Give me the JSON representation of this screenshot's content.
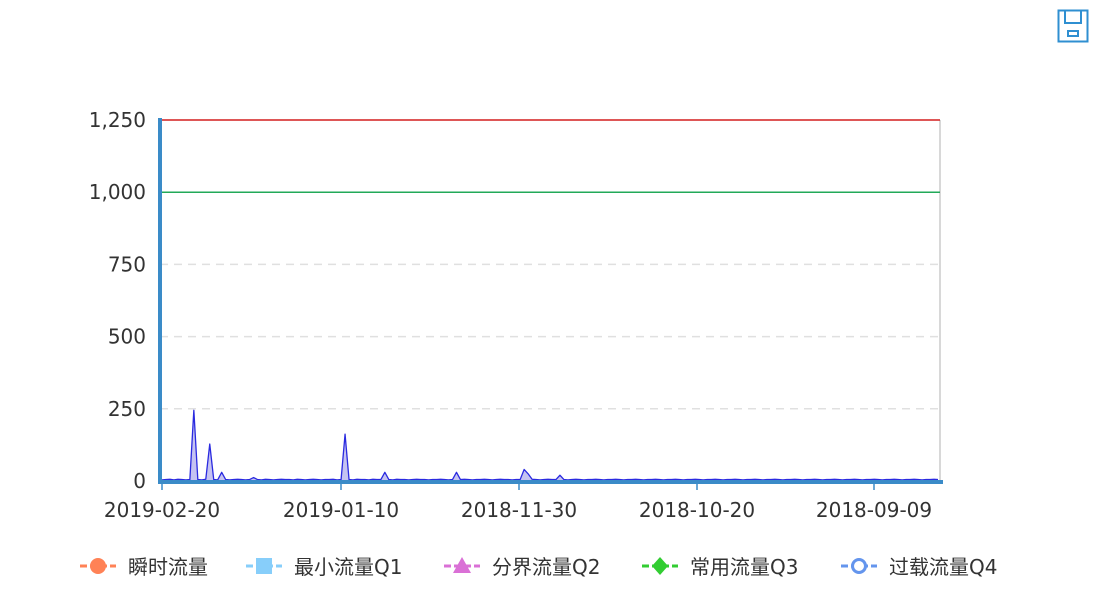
{
  "toolbar": {
    "save_icon": "save-as-image-icon",
    "color": "#2f8fd1"
  },
  "chart_data": {
    "type": "area",
    "x_ticks": [
      "2019-02-20",
      "2019-01-10",
      "2018-11-30",
      "2018-10-20",
      "2018-09-09"
    ],
    "y_ticks": [
      "0",
      "250",
      "500",
      "750",
      "1,000",
      "1,250"
    ],
    "ylim": [
      0,
      1250
    ],
    "grid": true,
    "reference_lines": [
      {
        "value": 1250,
        "color": "#d41e1e"
      },
      {
        "value": 1000,
        "color": "#22a958"
      }
    ],
    "series": [
      {
        "color": "#2a2ae0",
        "fill": "#b7b4ee",
        "values": [
          4,
          5,
          6,
          4,
          6,
          5,
          4,
          5,
          245,
          5,
          4,
          6,
          128,
          5,
          4,
          30,
          5,
          4,
          5,
          6,
          5,
          4,
          5,
          12,
          5,
          4,
          6,
          5,
          4,
          5,
          6,
          5,
          5,
          4,
          6,
          5,
          4,
          5,
          6,
          5,
          4,
          5,
          5,
          6,
          4,
          5,
          162,
          5,
          4,
          6,
          5,
          5,
          4,
          6,
          5,
          5,
          30,
          5,
          4,
          6,
          5,
          5,
          4,
          5,
          6,
          5,
          5,
          4,
          5,
          5,
          6,
          5,
          4,
          5,
          30,
          5,
          6,
          5,
          4,
          5,
          5,
          6,
          5,
          4,
          5,
          6,
          5,
          5,
          4,
          5,
          5,
          40,
          25,
          6,
          5,
          4,
          5,
          6,
          5,
          5,
          20,
          5,
          4,
          5,
          6,
          5,
          4,
          5,
          5,
          6,
          5,
          4,
          5,
          5,
          6,
          5,
          4,
          5,
          5,
          6,
          5,
          4,
          5,
          5,
          6,
          5,
          4,
          5,
          5,
          6,
          5,
          4,
          5,
          5,
          6,
          5,
          4,
          5,
          5,
          6,
          5,
          4,
          5,
          5,
          6,
          5,
          4,
          5,
          5,
          6,
          5,
          4,
          5,
          5,
          6,
          5,
          4,
          5,
          5,
          6,
          5,
          4,
          5,
          5,
          6,
          5,
          4,
          5,
          5,
          6,
          5,
          4,
          5,
          5,
          6,
          5,
          4,
          5,
          5,
          6,
          5,
          4,
          5,
          5,
          6,
          5,
          4,
          5,
          5,
          6,
          5,
          4,
          5,
          5,
          6,
          5
        ]
      }
    ],
    "legend": {
      "position": "bottom",
      "items": [
        {
          "label": "瞬时流量",
          "color": "#ff8256",
          "marker": "circle"
        },
        {
          "label": "最小流量Q1",
          "color": "#87cefa",
          "marker": "square"
        },
        {
          "label": "分界流量Q2",
          "color": "#da70d6",
          "marker": "triangle"
        },
        {
          "label": "常用流量Q3",
          "color": "#32cd32",
          "marker": "diamond"
        },
        {
          "label": "过载流量Q4",
          "color": "#6495ed",
          "marker": "empty-circle"
        }
      ]
    }
  }
}
